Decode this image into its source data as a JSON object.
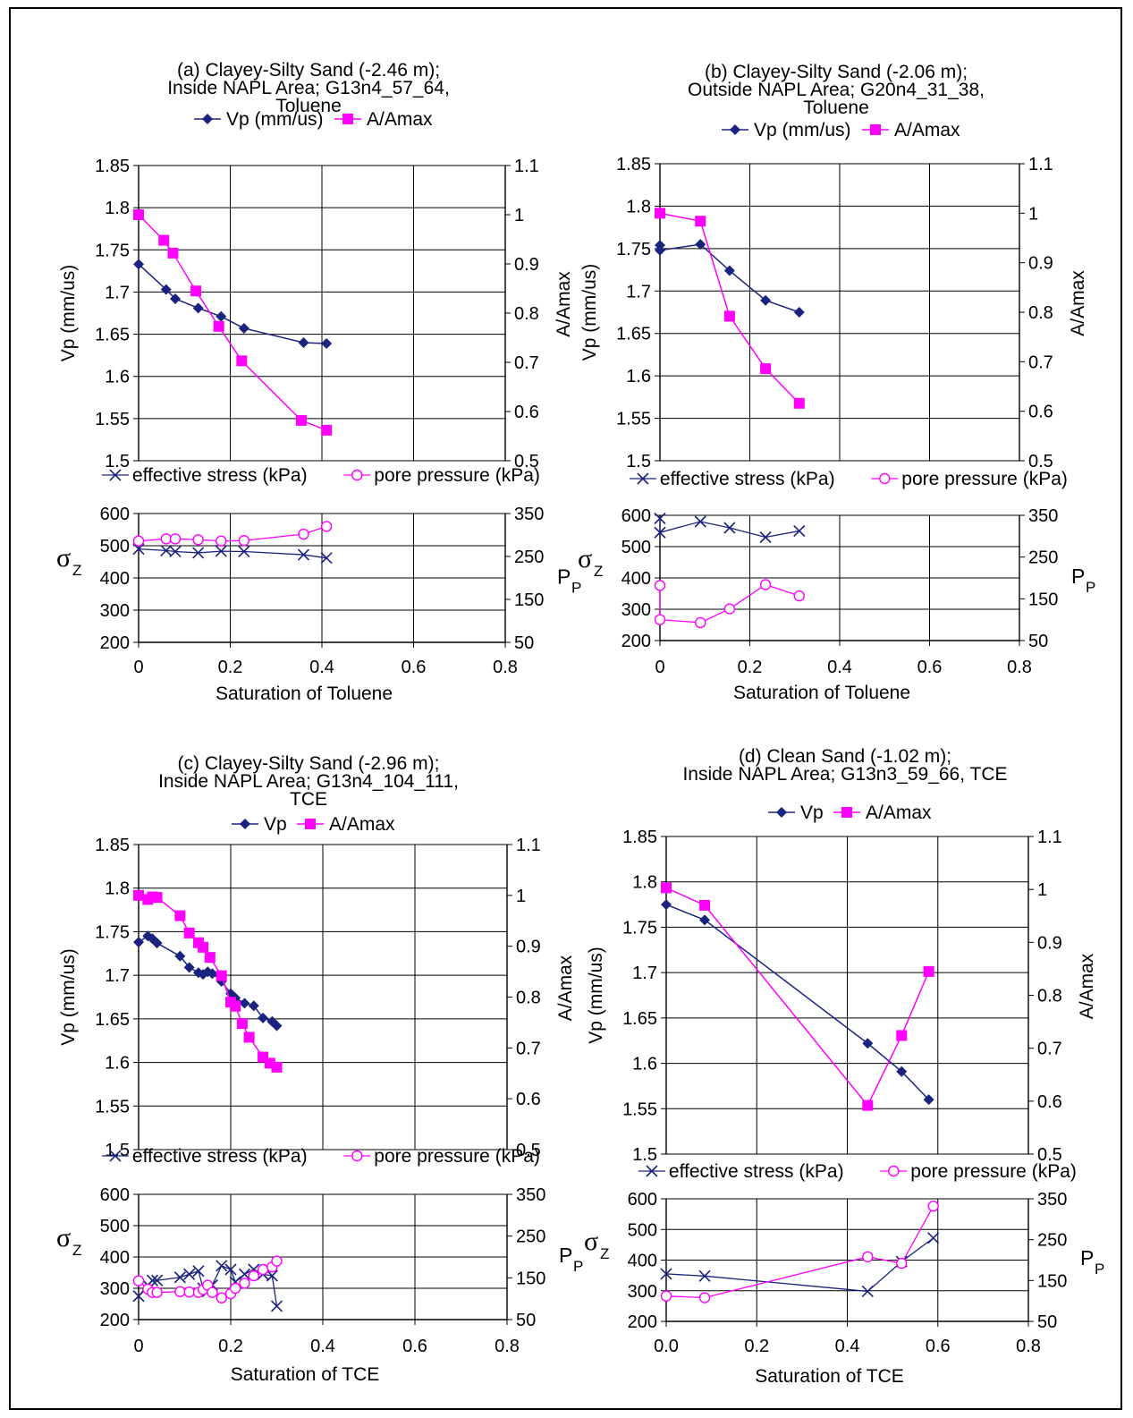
{
  "colors": {
    "vp": "#1a237e",
    "amp": "#ff00ff",
    "eff": "#1a237e",
    "pore": "#ff00ff",
    "grid": "#000000"
  },
  "chart_data": [
    {
      "id": "a",
      "type": "line",
      "title_lines": [
        "(a) Clayey-Silty Sand (-2.46 m);",
        "Inside NAPL Area; G13n4_57_64,",
        "Toluene"
      ],
      "top": {
        "legend": [
          "Vp (mm/us)",
          "A/Amax"
        ],
        "ylabel_left": "Vp (mm/us)",
        "ylabel_right": "A/Amax",
        "ylim_left": [
          1.5,
          1.85
        ],
        "yticks_left": [
          "1.5",
          "1.55",
          "1.6",
          "1.65",
          "1.7",
          "1.75",
          "1.8",
          "1.85"
        ],
        "ylim_right": [
          0.5,
          1.1
        ],
        "yticks_right": [
          "0.5",
          "0.6",
          "0.7",
          "0.8",
          "0.9",
          "1",
          "1.1"
        ],
        "series": [
          {
            "name": "Vp (mm/us)",
            "axis": "left",
            "marker": "diamond",
            "x": [
              0,
              0.06,
              0.08,
              0.13,
              0.18,
              0.23,
              0.36,
              0.41
            ],
            "y": [
              1.733,
              1.703,
              1.692,
              1.681,
              1.671,
              1.657,
              1.64,
              1.639
            ]
          },
          {
            "name": "A/Amax",
            "axis": "right",
            "marker": "square",
            "x": [
              0,
              0.055,
              0.075,
              0.125,
              0.175,
              0.225,
              0.355,
              0.41
            ],
            "y": [
              1.0,
              0.948,
              0.922,
              0.845,
              0.773,
              0.703,
              0.582,
              0.562
            ]
          }
        ]
      },
      "bottom": {
        "legend": [
          "effective stress (kPa)",
          "pore pressure (kPa)"
        ],
        "ylabel_left_main": "σ",
        "ylabel_left_sub": "Z",
        "ylabel_right_main": "P",
        "ylabel_right_sub": "P",
        "ylim_left": [
          200,
          600
        ],
        "yticks_left": [
          "200",
          "300",
          "400",
          "500",
          "600"
        ],
        "ylim_right": [
          50,
          350
        ],
        "yticks_right": [
          "50",
          "150",
          "250",
          "350"
        ],
        "series": [
          {
            "name": "effective stress (kPa)",
            "axis": "left",
            "marker": "x",
            "x": [
              0,
              0.06,
              0.08,
              0.13,
              0.18,
              0.23,
              0.36,
              0.41
            ],
            "y": [
              490,
              485,
              482,
              478,
              483,
              482,
              472,
              462
            ]
          },
          {
            "name": "pore pressure (kPa)",
            "axis": "right",
            "marker": "circle",
            "x": [
              0,
              0.06,
              0.08,
              0.13,
              0.18,
              0.23,
              0.36,
              0.41
            ],
            "y": [
              286,
              291,
              291,
              289,
              286,
              287,
              302,
              320
            ]
          }
        ]
      },
      "xlabel": "Saturation of Toluene",
      "xlim": [
        0,
        0.8
      ],
      "xticks": [
        "0",
        "0.2",
        "0.4",
        "0.6",
        "0.8"
      ]
    },
    {
      "id": "b",
      "type": "line",
      "title_lines": [
        "(b) Clayey-Silty Sand (-2.06 m);",
        "Outside NAPL Area; G20n4_31_38,",
        "Toluene"
      ],
      "top": {
        "legend": [
          "Vp (mm/us)",
          "A/Amax"
        ],
        "ylabel_left": "Vp (mm/us)",
        "ylabel_right": "A/Amax",
        "ylim_left": [
          1.5,
          1.85
        ],
        "yticks_left": [
          "1.5",
          "1.55",
          "1.6",
          "1.65",
          "1.7",
          "1.75",
          "1.8",
          "1.85"
        ],
        "ylim_right": [
          0.5,
          1.1
        ],
        "yticks_right": [
          "0.5",
          "0.6",
          "0.7",
          "0.8",
          "0.9",
          "1",
          "1.1"
        ],
        "series": [
          {
            "name": "Vp (mm/us)",
            "axis": "left",
            "marker": "diamond",
            "x": [
              0,
              0,
              0.09,
              0.155,
              0.235,
              0.31
            ],
            "y": [
              1.754,
              1.748,
              1.755,
              1.724,
              1.689,
              1.675
            ]
          },
          {
            "name": "A/Amax",
            "axis": "right",
            "marker": "square",
            "x": [
              0,
              0.09,
              0.155,
              0.235,
              0.31
            ],
            "y": [
              1.0,
              0.984,
              0.792,
              0.686,
              0.616
            ]
          }
        ]
      },
      "bottom": {
        "legend": [
          "effective stress (kPa)",
          "pore pressure (kPa)"
        ],
        "ylabel_left_main": "σ",
        "ylabel_left_sub": "Z",
        "ylabel_right_main": "P",
        "ylabel_right_sub": "P",
        "ylim_left": [
          200,
          600
        ],
        "yticks_left": [
          "200",
          "300",
          "400",
          "500",
          "600"
        ],
        "ylim_right": [
          50,
          350
        ],
        "yticks_right": [
          "50",
          "150",
          "250",
          "350"
        ],
        "series": [
          {
            "name": "effective stress (kPa)",
            "axis": "left",
            "marker": "x",
            "x": [
              0,
              0,
              0.09,
              0.155,
              0.235,
              0.31
            ],
            "y": [
              590,
              545,
              580,
              560,
              530,
              550
            ]
          },
          {
            "name": "pore pressure (kPa)",
            "axis": "right",
            "marker": "circle",
            "x": [
              0,
              0,
              0.09,
              0.155,
              0.235,
              0.31
            ],
            "y": [
              182,
              100,
              93,
              126,
              184,
              157
            ]
          }
        ]
      },
      "xlabel": "Saturation of Toluene",
      "xlim": [
        0,
        0.8
      ],
      "xticks": [
        "0",
        "0.2",
        "0.4",
        "0.6",
        "0.8"
      ]
    },
    {
      "id": "c",
      "type": "line",
      "title_lines": [
        "(c) Clayey-Silty Sand (-2.96 m);",
        "Inside NAPL Area; G13n4_104_111,",
        "TCE"
      ],
      "top": {
        "legend": [
          "Vp",
          "A/Amax"
        ],
        "ylabel_left": "Vp (mm/us)",
        "ylabel_right": "A/Amax",
        "ylim_left": [
          1.5,
          1.85
        ],
        "yticks_left": [
          "1.5",
          "1.55",
          "1.6",
          "1.65",
          "1.7",
          "1.75",
          "1.8",
          "1.85"
        ],
        "ylim_right": [
          0.5,
          1.1
        ],
        "yticks_right": [
          "0.5",
          "0.6",
          "0.7",
          "0.8",
          "0.9",
          "1",
          "1.1"
        ],
        "series": [
          {
            "name": "Vp",
            "axis": "left",
            "marker": "diamond",
            "x": [
              0,
              0.02,
              0.03,
              0.04,
              0.09,
              0.11,
              0.13,
              0.14,
              0.15,
              0.16,
              0.18,
              0.2,
              0.21,
              0.23,
              0.25,
              0.27,
              0.29,
              0.3
            ],
            "y": [
              1.738,
              1.745,
              1.742,
              1.737,
              1.722,
              1.709,
              1.703,
              1.701,
              1.704,
              1.702,
              1.693,
              1.679,
              1.674,
              1.668,
              1.665,
              1.651,
              1.647,
              1.642
            ]
          },
          {
            "name": "A/Amax",
            "axis": "right",
            "marker": "square",
            "x": [
              0,
              0.02,
              0.03,
              0.04,
              0.09,
              0.11,
              0.13,
              0.14,
              0.155,
              0.18,
              0.2,
              0.21,
              0.225,
              0.24,
              0.27,
              0.285,
              0.3
            ],
            "y": [
              1.0,
              0.992,
              0.997,
              0.996,
              0.96,
              0.926,
              0.907,
              0.898,
              0.878,
              0.842,
              0.79,
              0.782,
              0.748,
              0.721,
              0.682,
              0.67,
              0.662
            ]
          }
        ]
      },
      "bottom": {
        "legend": [
          "effective stress (kPa)",
          "pore pressure (kPa)"
        ],
        "ylabel_left_main": "σ",
        "ylabel_left_sub": "Z",
        "ylabel_right_main": "P",
        "ylabel_right_sub": "P",
        "ylim_left": [
          200,
          600
        ],
        "yticks_left": [
          "200",
          "300",
          "400",
          "500",
          "600"
        ],
        "ylim_right": [
          50,
          350
        ],
        "yticks_right": [
          "50",
          "150",
          "250",
          "350"
        ],
        "series": [
          {
            "name": "effective stress (kPa)",
            "axis": "left",
            "marker": "x",
            "x": [
              0,
              0.02,
              0.03,
              0.04,
              0.09,
              0.11,
              0.13,
              0.14,
              0.15,
              0.16,
              0.18,
              0.2,
              0.21,
              0.23,
              0.25,
              0.27,
              0.29,
              0.3
            ],
            "y": [
              275,
              310,
              325,
              325,
              335,
              345,
              355,
              300,
              290,
              310,
              372,
              360,
              320,
              345,
              360,
              345,
              340,
              243
            ]
          },
          {
            "name": "pore pressure (kPa)",
            "axis": "right",
            "marker": "circle",
            "x": [
              0,
              0.02,
              0.03,
              0.04,
              0.09,
              0.11,
              0.13,
              0.14,
              0.15,
              0.16,
              0.18,
              0.2,
              0.21,
              0.23,
              0.25,
              0.27,
              0.29,
              0.3
            ],
            "y": [
              143,
              123,
              115,
              115,
              117,
              116,
              115,
              122,
              132,
              115,
              102,
              112,
              125,
              137,
              155,
              170,
              176,
              190
            ]
          }
        ]
      },
      "xlabel": "Saturation of TCE",
      "xlim": [
        0,
        0.8
      ],
      "xticks": [
        "0",
        "0.2",
        "0.4",
        "0.6",
        "0.8"
      ]
    },
    {
      "id": "d",
      "type": "line",
      "title_lines": [
        "(d) Clean Sand (-1.02 m);",
        "Inside NAPL Area; G13n3_59_66,  TCE"
      ],
      "top": {
        "legend": [
          "Vp",
          "A/Amax"
        ],
        "ylabel_left": "Vp (mm/us)",
        "ylabel_right": "A/Amax",
        "ylim_left": [
          1.5,
          1.85
        ],
        "yticks_left": [
          "1.5",
          "1.55",
          "1.6",
          "1.65",
          "1.7",
          "1.75",
          "1.8",
          "1.85"
        ],
        "ylim_right": [
          0.5,
          1.1
        ],
        "yticks_right": [
          "0.5",
          "0.6",
          "0.7",
          "0.8",
          "0.9",
          "1",
          "1.1"
        ],
        "series": [
          {
            "name": "Vp",
            "axis": "left",
            "marker": "diamond",
            "x": [
              0,
              0.085,
              0.445,
              0.52,
              0.58
            ],
            "y": [
              1.775,
              1.758,
              1.622,
              1.591,
              1.56
            ]
          },
          {
            "name": "A/Amax",
            "axis": "right",
            "marker": "square",
            "x": [
              0,
              0.085,
              0.445,
              0.52,
              0.58
            ],
            "y": [
              1.003,
              0.97,
              0.592,
              0.724,
              0.845
            ]
          }
        ]
      },
      "bottom": {
        "legend": [
          "effective stress (kPa)",
          "pore pressure (kPa)"
        ],
        "ylabel_left_main": "σ",
        "ylabel_left_sub": "Z",
        "ylabel_right_main": "P",
        "ylabel_right_sub": "P",
        "ylim_left": [
          200,
          600
        ],
        "yticks_left": [
          "200",
          "300",
          "400",
          "500",
          "600"
        ],
        "ylim_right": [
          50,
          350
        ],
        "yticks_right": [
          "50",
          "150",
          "250",
          "350"
        ],
        "series": [
          {
            "name": "effective stress (kPa)",
            "axis": "left",
            "marker": "x",
            "x": [
              0,
              0.085,
              0.445,
              0.52,
              0.59
            ],
            "y": [
              355,
              348,
              298,
              395,
              472
            ]
          },
          {
            "name": "pore pressure (kPa)",
            "axis": "right",
            "marker": "circle",
            "x": [
              0,
              0.085,
              0.445,
              0.52,
              0.59
            ],
            "y": [
              112,
              108,
              208,
              192,
              332
            ]
          }
        ]
      },
      "xlabel": "Saturation of TCE",
      "xlim": [
        0,
        0.8
      ],
      "xticks": [
        "0.0",
        "0.2",
        "0.4",
        "0.6",
        "0.8"
      ]
    }
  ]
}
